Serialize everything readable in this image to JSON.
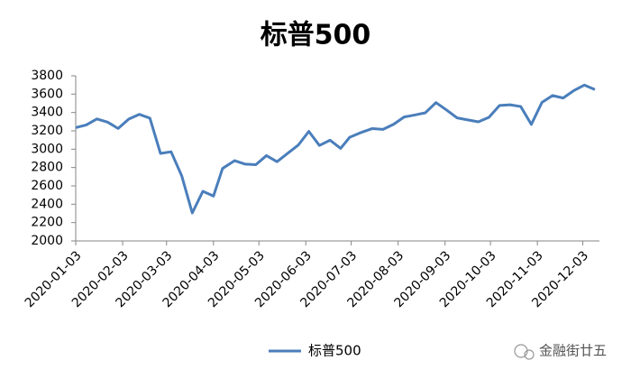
{
  "chart_data": {
    "type": "line",
    "title": "标普500",
    "x": [
      "2020-01-03",
      "2020-01-10",
      "2020-01-17",
      "2020-01-24",
      "2020-01-31",
      "2020-02-07",
      "2020-02-14",
      "2020-02-21",
      "2020-02-28",
      "2020-03-06",
      "2020-03-13",
      "2020-03-20",
      "2020-03-27",
      "2020-04-03",
      "2020-04-09",
      "2020-04-17",
      "2020-04-24",
      "2020-05-01",
      "2020-05-08",
      "2020-05-15",
      "2020-05-22",
      "2020-05-29",
      "2020-06-05",
      "2020-06-12",
      "2020-06-19",
      "2020-06-26",
      "2020-07-02",
      "2020-07-10",
      "2020-07-17",
      "2020-07-24",
      "2020-07-31",
      "2020-08-07",
      "2020-08-14",
      "2020-08-21",
      "2020-08-28",
      "2020-09-04",
      "2020-09-11",
      "2020-09-18",
      "2020-09-25",
      "2020-10-02",
      "2020-10-09",
      "2020-10-16",
      "2020-10-23",
      "2020-10-30",
      "2020-11-06",
      "2020-11-13",
      "2020-11-20",
      "2020-11-27",
      "2020-12-04",
      "2020-12-11"
    ],
    "series": [
      {
        "name": "标普500",
        "color": "#4a7ebb",
        "values": [
          3235,
          3265,
          3330,
          3295,
          3226,
          3328,
          3380,
          3338,
          2954,
          2972,
          2711,
          2305,
          2541,
          2489,
          2790,
          2875,
          2837,
          2831,
          2930,
          2864,
          2955,
          3044,
          3194,
          3041,
          3098,
          3009,
          3130,
          3185,
          3225,
          3216,
          3271,
          3351,
          3373,
          3397,
          3508,
          3427,
          3341,
          3319,
          3298,
          3348,
          3477,
          3484,
          3465,
          3270,
          3510,
          3585,
          3558,
          3638,
          3699,
          3650
        ]
      }
    ],
    "xlim": [
      "2020-01-03",
      "2020-12-14"
    ],
    "xticks": [
      "2020-01-03",
      "2020-02-03",
      "2020-03-03",
      "2020-04-03",
      "2020-05-03",
      "2020-06-03",
      "2020-07-03",
      "2020-08-03",
      "2020-09-03",
      "2020-10-03",
      "2020-11-03",
      "2020-12-03"
    ],
    "ylim": [
      2000,
      3800
    ],
    "yticks": [
      2000,
      2200,
      2400,
      2600,
      2800,
      3000,
      3200,
      3400,
      3600,
      3800
    ],
    "grid": false,
    "legend": "bottom",
    "watermark": "金融街廿五"
  }
}
